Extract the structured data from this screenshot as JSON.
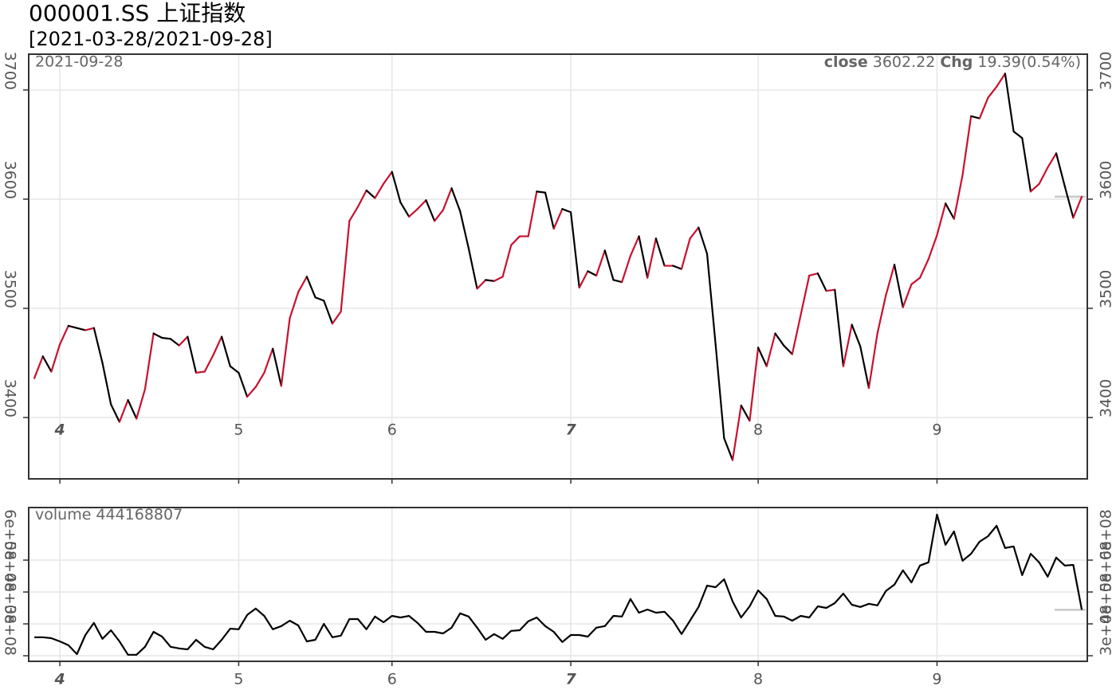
{
  "chart_data": [
    {
      "type": "line",
      "title": "000001.SS 上证指数",
      "subtitle": "[2021-03-28/2021-09-28]",
      "date_label": "2021-09-28",
      "change_label": "Chg",
      "change": 19.39,
      "change_pct_label": "(0.54%)",
      "xlim": [
        -0.66,
        123.65
      ],
      "xticks": [
        {
          "value": 3,
          "label": "4"
        },
        {
          "value": 24,
          "label": "5"
        },
        {
          "value": 42,
          "label": "6"
        },
        {
          "value": 63,
          "label": "7"
        },
        {
          "value": 85,
          "label": "8"
        },
        {
          "value": 106,
          "label": "9"
        }
      ],
      "ylim": [
        3343.8,
        3732.8
      ],
      "yticks": [
        3400,
        3500,
        3600,
        3700
      ],
      "grid": true,
      "series": [
        {
          "name": "close",
          "up_color": "#c8102e",
          "down_color": "#000000",
          "values": [
            3436,
            3456,
            3442,
            3467,
            3484,
            3482,
            3480,
            3482,
            3450,
            3412,
            3396,
            3416,
            3399,
            3426,
            3477,
            3473,
            3472,
            3466,
            3474,
            3441,
            3442,
            3457,
            3474,
            3447,
            3441,
            3419,
            3428,
            3441,
            3463,
            3429,
            3491,
            3515,
            3529,
            3510,
            3507,
            3486,
            3497,
            3580,
            3593,
            3608,
            3601,
            3614,
            3625,
            3597,
            3584,
            3591,
            3599,
            3580,
            3590,
            3610,
            3589,
            3555,
            3518,
            3526,
            3525,
            3529,
            3558,
            3566,
            3566,
            3607,
            3606,
            3573,
            3591,
            3588,
            3519,
            3534,
            3530,
            3553,
            3526,
            3524,
            3548,
            3566,
            3528,
            3564,
            3539,
            3539,
            3536,
            3564,
            3574,
            3550,
            3467,
            3381,
            3361,
            3411,
            3397,
            3464,
            3447,
            3477,
            3466,
            3458,
            3494,
            3530,
            3532,
            3516,
            3517,
            3447,
            3485,
            3465,
            3427,
            3477,
            3512,
            3540,
            3501,
            3522,
            3528,
            3545,
            3567,
            3596,
            3582,
            3622,
            3676,
            3674,
            3693,
            3703,
            3715,
            3662,
            3656,
            3607,
            3614,
            3629,
            3642,
            3612,
            3583,
            3602.22
          ]
        }
      ]
    },
    {
      "type": "line",
      "xlim": [
        -0.66,
        123.65
      ],
      "xticks": [
        {
          "value": 3,
          "label": "4"
        },
        {
          "value": 24,
          "label": "5"
        },
        {
          "value": 42,
          "label": "6"
        },
        {
          "value": 63,
          "label": "7"
        },
        {
          "value": 85,
          "label": "8"
        },
        {
          "value": 106,
          "label": "9"
        }
      ],
      "ylim": [
        282500000,
        765000000
      ],
      "yticks": [
        {
          "value": 300000000,
          "label": "3e+08"
        },
        {
          "value": 400000000,
          "label": "4e+08"
        },
        {
          "value": 500000000,
          "label": "5e+08"
        },
        {
          "value": 600000000,
          "label": "6e+08"
        }
      ],
      "grid": true,
      "series": [
        {
          "name": "volume",
          "color": "#000000",
          "values": [
            358000000,
            358000000,
            355000000,
            345000000,
            333000000,
            305000000,
            365000000,
            403000000,
            353000000,
            380000000,
            345000000,
            303000000,
            303000000,
            328000000,
            375000000,
            360000000,
            328000000,
            323000000,
            320000000,
            350000000,
            328000000,
            320000000,
            350000000,
            385000000,
            383000000,
            428000000,
            448000000,
            425000000,
            383000000,
            393000000,
            410000000,
            395000000,
            345000000,
            350000000,
            400000000,
            358000000,
            363000000,
            415000000,
            415000000,
            383000000,
            423000000,
            405000000,
            425000000,
            420000000,
            425000000,
            403000000,
            375000000,
            375000000,
            370000000,
            388000000,
            433000000,
            423000000,
            388000000,
            350000000,
            368000000,
            353000000,
            378000000,
            380000000,
            408000000,
            420000000,
            393000000,
            375000000,
            343000000,
            365000000,
            365000000,
            360000000,
            388000000,
            393000000,
            425000000,
            423000000,
            478000000,
            435000000,
            445000000,
            435000000,
            438000000,
            410000000,
            368000000,
            410000000,
            453000000,
            520000000,
            515000000,
            540000000,
            470000000,
            420000000,
            455000000,
            505000000,
            478000000,
            425000000,
            423000000,
            410000000,
            425000000,
            420000000,
            455000000,
            450000000,
            465000000,
            495000000,
            460000000,
            453000000,
            463000000,
            458000000,
            503000000,
            523000000,
            568000000,
            530000000,
            583000000,
            593000000,
            743000000,
            648000000,
            690000000,
            598000000,
            620000000,
            658000000,
            675000000,
            708000000,
            638000000,
            643000000,
            553000000,
            620000000,
            593000000,
            548000000,
            608000000,
            583000000,
            585000000,
            444168807
          ]
        }
      ]
    }
  ]
}
